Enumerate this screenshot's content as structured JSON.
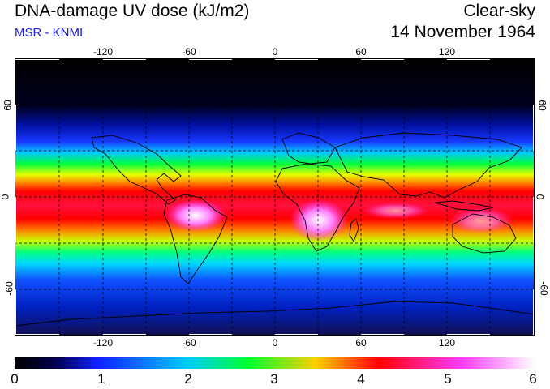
{
  "header": {
    "title": "DNA-damage UV dose (kJ/m2)",
    "source": "MSR - KNMI",
    "condition": "Clear-sky",
    "date": "14 November 1964"
  },
  "map": {
    "lon_range": [
      -180,
      180
    ],
    "lat_range": [
      -90,
      90
    ],
    "gridlines": true,
    "lon_ticks": [
      "-120",
      "-60",
      "0",
      "60",
      "120"
    ],
    "lat_ticks": [
      "60",
      "0",
      "-60"
    ],
    "lat_ticks_right": [
      "60",
      "0",
      "-60"
    ]
  },
  "colorbar": {
    "min": 0,
    "max": 6,
    "labels": [
      "0",
      "1",
      "2",
      "3",
      "4",
      "5",
      "6"
    ],
    "colors": [
      "#000000",
      "#1020ff",
      "#00c8ff",
      "#00ff30",
      "#ffd000",
      "#ff0000",
      "#ff3cff",
      "#ffffff"
    ]
  }
}
